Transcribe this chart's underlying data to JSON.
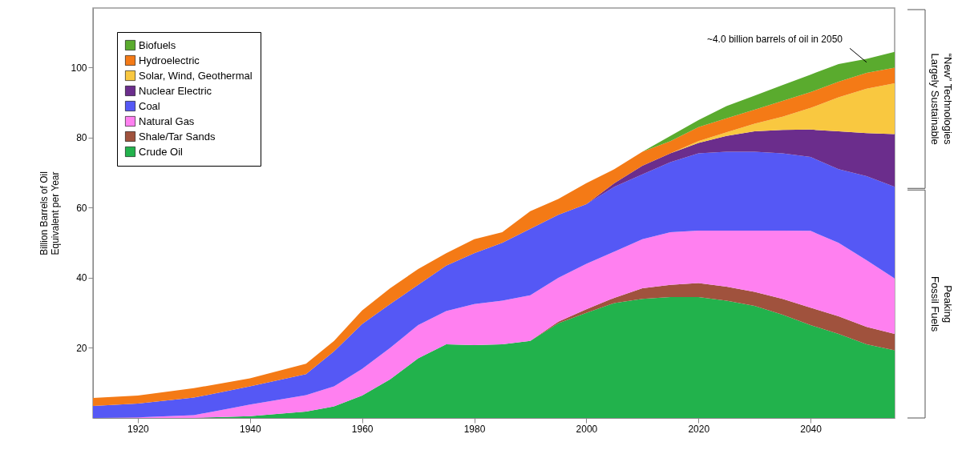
{
  "chart_data": {
    "type": "area",
    "stacked": true,
    "ylabel": "Billion Barrels of Oil\nEquivalent per Year",
    "x": [
      1912,
      1920,
      1930,
      1940,
      1950,
      1955,
      1960,
      1965,
      1970,
      1975,
      1980,
      1985,
      1990,
      1995,
      2000,
      2005,
      2010,
      2015,
      2020,
      2025,
      2030,
      2035,
      2040,
      2045,
      2050,
      2055
    ],
    "series": [
      {
        "name": "Crude Oil",
        "color": "#22b24c",
        "values": [
          0,
          0,
          0,
          0.5,
          1.8,
          3.3,
          6.4,
          11,
          17,
          21,
          20.8,
          21,
          22,
          27,
          30,
          32.8,
          34,
          34.5,
          34.5,
          33.5,
          32,
          29.5,
          26.5,
          24,
          21,
          19.3
        ]
      },
      {
        "name": "Shale/Tar Sands",
        "color": "#a0523d",
        "values": [
          0,
          0,
          0,
          0,
          0,
          0,
          0,
          0,
          0,
          0,
          0,
          0,
          0,
          0.5,
          1,
          1.5,
          3,
          3.5,
          4,
          4,
          4,
          4.5,
          5,
          5,
          5,
          4.7
        ]
      },
      {
        "name": "Natural Gas",
        "color": "#ff80f0",
        "values": [
          0,
          0.2,
          0.8,
          3.3,
          4.7,
          5.7,
          7.6,
          9,
          9.5,
          9.5,
          11.7,
          12.5,
          13,
          12.5,
          13,
          13.2,
          14,
          15,
          15,
          16,
          17.5,
          19.5,
          21.9,
          21,
          19,
          15.8
        ]
      },
      {
        "name": "Coal",
        "color": "#5558f5",
        "values": [
          3.4,
          3.9,
          5,
          5.2,
          6,
          10,
          12.8,
          12.5,
          11.5,
          13,
          14.5,
          16.5,
          19,
          18,
          17,
          18.5,
          18.5,
          20,
          22,
          22.5,
          22.5,
          22,
          21.1,
          21,
          24,
          26.2
        ]
      },
      {
        "name": "Nuclear Electric",
        "color": "#6b2d8c",
        "values": [
          0,
          0,
          0,
          0,
          0,
          0,
          0,
          0,
          0,
          0,
          0,
          0,
          0,
          0,
          0,
          1,
          2.5,
          2.5,
          3,
          4.5,
          5.8,
          6.7,
          7.8,
          10.8,
          12.3,
          15
        ]
      },
      {
        "name": "Solar, Wind, Geothermal",
        "color": "#f9c840",
        "values": [
          0,
          0,
          0,
          0,
          0,
          0,
          0,
          0,
          0,
          0,
          0,
          0,
          0,
          0,
          0,
          0,
          0,
          0,
          0.5,
          1,
          2.2,
          3.8,
          6.2,
          9.7,
          12.7,
          14.5
        ]
      },
      {
        "name": "Hydroelectric",
        "color": "#f47a16",
        "values": [
          2.3,
          2.3,
          2.7,
          2.3,
          3,
          3,
          3.9,
          4.5,
          4.5,
          3.5,
          4,
          3,
          5,
          4.5,
          6,
          4,
          4,
          3.5,
          4,
          4,
          4,
          4.5,
          4.5,
          4.5,
          4.5,
          4.5
        ]
      },
      {
        "name": "Biofuels",
        "color": "#5aab2e",
        "values": [
          0,
          0,
          0,
          0,
          0,
          0,
          0,
          0,
          0,
          0,
          0,
          0,
          0,
          0,
          0,
          0,
          0,
          1.5,
          2,
          3.5,
          4,
          4.5,
          5,
          5,
          4,
          4.5
        ]
      }
    ],
    "xlim": [
      1912,
      2055
    ],
    "xticks": [
      1920,
      1940,
      1960,
      1980,
      2000,
      2020,
      2040
    ],
    "ylim": [
      0,
      117
    ],
    "yticks": [
      20,
      40,
      60,
      80,
      100
    ],
    "grid": false,
    "legend": "top left",
    "annotations": [
      {
        "text": "~4.0 billion barrels of oil in 2050",
        "x": 2050,
        "y": 101.5
      },
      "“New” Technologies\nLargely Sustainable",
      "Peaking\nFossil Fuels"
    ]
  }
}
